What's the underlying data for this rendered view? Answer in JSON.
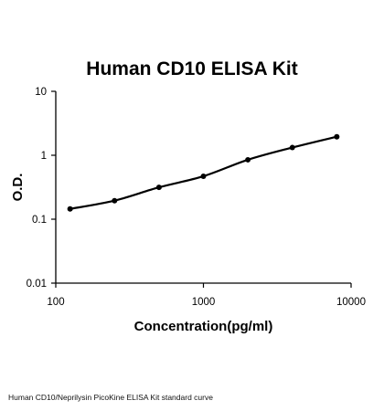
{
  "chart_data": {
    "type": "line",
    "title": "Human CD10 ELISA Kit",
    "xlabel": "Concentration(pg/ml)",
    "ylabel": "O.D.",
    "x_scale": "log",
    "y_scale": "log",
    "xlim": [
      100,
      10000
    ],
    "ylim": [
      0.01,
      10
    ],
    "x_ticks": [
      "100",
      "1000",
      "10000"
    ],
    "y_ticks": [
      "10",
      "1",
      "0.1",
      "0.01"
    ],
    "grid": false,
    "series": [
      {
        "x": [
          125,
          250,
          500,
          1000,
          2000,
          4000,
          8000
        ],
        "y": [
          0.145,
          0.195,
          0.315,
          0.47,
          0.85,
          1.32,
          1.95
        ]
      }
    ],
    "colors": {
      "line": "#000000",
      "marker": "#000000"
    }
  },
  "caption": "Human CD10/Neprilysin PicoKine ELISA Kit standard curve"
}
